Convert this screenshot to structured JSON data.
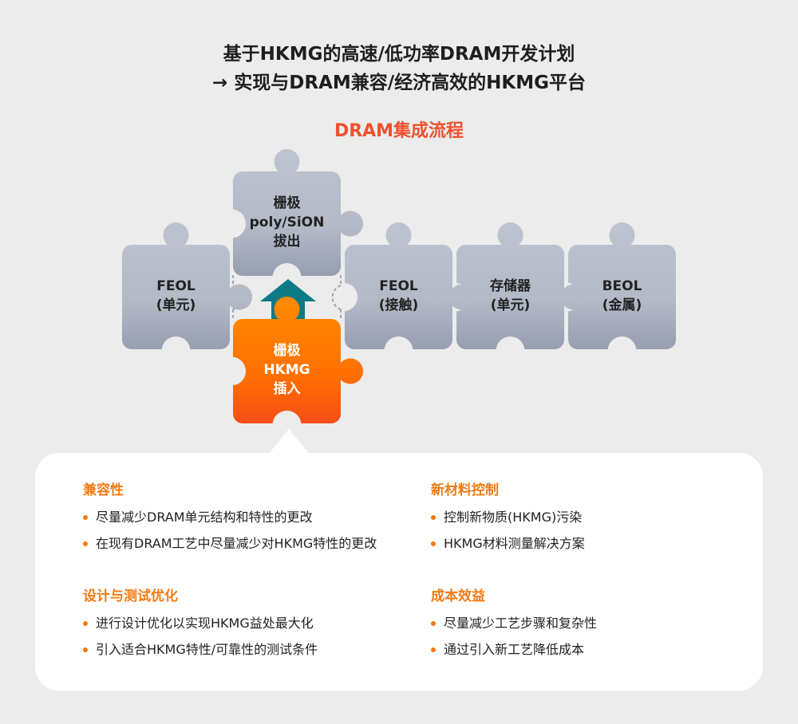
{
  "header": {
    "line1": "基于HKMG的高速/低功率DRAM开发计划",
    "line2": "→ 实现与DRAM兼容/经济高效的HKMG平台",
    "subtitle": "DRAM集成流程"
  },
  "colors": {
    "accent": "#f47a12",
    "subtitle": "#f0502d",
    "arrow": "#0b7a86",
    "piece_gray": "#b3b9c7",
    "piece_orange": "#ff6a00"
  },
  "pieces": [
    {
      "id": "feol-cell",
      "lines": [
        "FEOL",
        "(单元)"
      ]
    },
    {
      "id": "gate-poly",
      "lines": [
        "栅极",
        "poly/SiON",
        "拔出"
      ]
    },
    {
      "id": "feol-contact",
      "lines": [
        "FEOL",
        "(接触)"
      ]
    },
    {
      "id": "memory-cell",
      "lines": [
        "存储器",
        "(单元)"
      ]
    },
    {
      "id": "beol-metal",
      "lines": [
        "BEOL",
        "(金属)"
      ]
    },
    {
      "id": "gate-hkmg",
      "lines": [
        "栅极",
        "HKMG",
        "插入"
      ]
    }
  ],
  "arrow_icon": "up-arrow",
  "sections": [
    {
      "title": "兼容性",
      "items": [
        "尽量减少DRAM单元结构和特性的更改",
        "在现有DRAM工艺中尽量减少对HKMG特性的更改"
      ]
    },
    {
      "title": "新材料控制",
      "items": [
        "控制新物质(HKMG)污染",
        "HKMG材料测量解决方案"
      ]
    },
    {
      "title": "设计与测试优化",
      "items": [
        "进行设计优化以实现HKMG益处最大化",
        "引入适合HKMG特性/可靠性的测试条件"
      ]
    },
    {
      "title": "成本效益",
      "items": [
        "尽量减少工艺步骤和复杂性",
        "通过引入新工艺降低成本"
      ]
    }
  ]
}
